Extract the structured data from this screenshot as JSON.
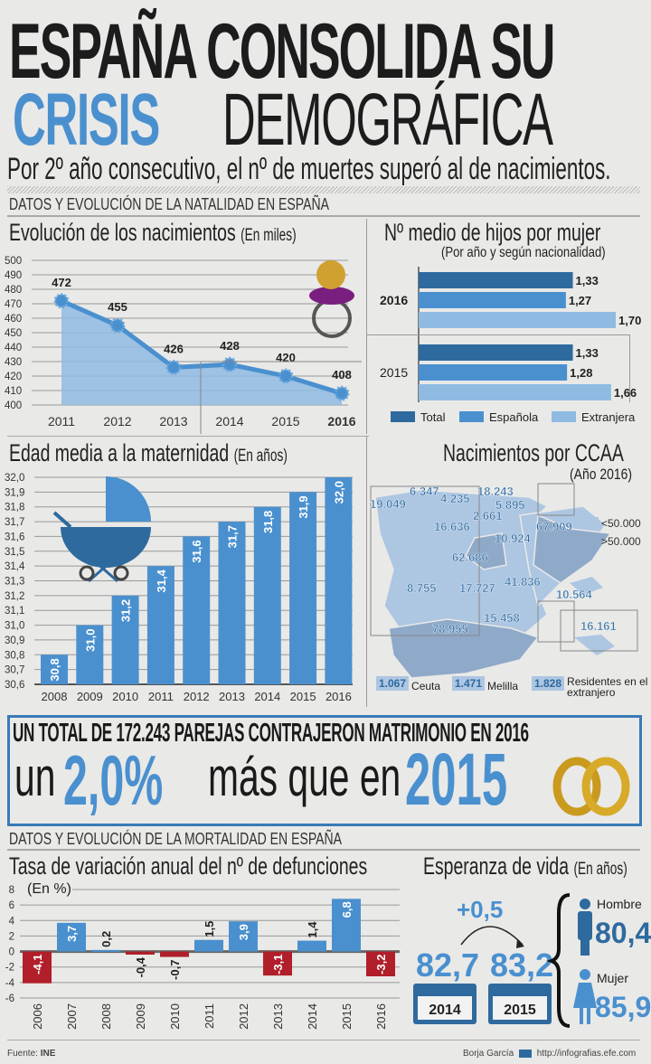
{
  "header": {
    "title_line1": "ESPAÑA CONSOLIDA SU",
    "title_line2_accent": "CRISIS",
    "title_line2_rest": "DEMOGRÁFICA",
    "subtitle": "Por 2º año consecutivo, el nº de muertes superó al de nacimientos."
  },
  "sections": {
    "natalidad": "DATOS Y EVOLUCIÓN DE LA NATALIDAD EN ESPAÑA",
    "mortalidad": "DATOS Y EVOLUCIÓN DE LA MORTALIDAD EN ESPAÑA"
  },
  "colors": {
    "accent_blue": "#4a90cf",
    "dark_blue": "#2e6a9e",
    "light_blue": "#8fbbe3",
    "negative_red": "#b01f2a",
    "map_low": "#adc6e2",
    "map_high": "#8fa9c9"
  },
  "chart_data": [
    {
      "id": "births",
      "type": "area",
      "title": "Evolución de los nacimientos",
      "unit_label": "(En miles)",
      "x": [
        "2011",
        "2012",
        "2013",
        "2014",
        "2015",
        "2016"
      ],
      "values": [
        472,
        455,
        426,
        428,
        420,
        408
      ],
      "labels": [
        "472",
        "455",
        "426",
        "428",
        "420",
        "408"
      ],
      "yticks": [
        "400",
        "410",
        "420",
        "430",
        "440",
        "450",
        "460",
        "470",
        "480",
        "490",
        "500"
      ],
      "ylim": [
        400,
        500
      ],
      "highlight": "2016",
      "grid": true
    },
    {
      "id": "children",
      "type": "bar",
      "orientation": "horizontal",
      "title": "Nº medio de hijos por mujer",
      "subtitle": "(Por año y según nacionalidad)",
      "categories": [
        "2016",
        "2015"
      ],
      "series": [
        {
          "name": "Total",
          "values": [
            1.33,
            1.33
          ],
          "labels": [
            "1,33",
            "1,33"
          ]
        },
        {
          "name": "Española",
          "values": [
            1.27,
            1.28
          ],
          "labels": [
            "1,27",
            "1,28"
          ]
        },
        {
          "name": "Extranjera",
          "values": [
            1.7,
            1.66
          ],
          "labels": [
            "1,70",
            "1,66"
          ]
        }
      ],
      "legend": "bottom"
    },
    {
      "id": "maternity_age",
      "type": "bar",
      "title": "Edad media a la maternidad",
      "unit_label": "(En años)",
      "categories": [
        "2008",
        "2009",
        "2010",
        "2011",
        "2012",
        "2013",
        "2014",
        "2015",
        "2016"
      ],
      "values": [
        30.8,
        31.0,
        31.2,
        31.4,
        31.6,
        31.7,
        31.8,
        31.9,
        32.0
      ],
      "labels": [
        "30,8",
        "31,0",
        "31,2",
        "31,4",
        "31,6",
        "31,7",
        "31,8",
        "31,9",
        "32,0"
      ],
      "yticks": [
        "30,6",
        "30,7",
        "30,8",
        "30,9",
        "31,0",
        "31,1",
        "31,2",
        "31,3",
        "31,4",
        "31,5",
        "31,6",
        "31,7",
        "31,8",
        "31,9",
        "32,0"
      ],
      "ylim": [
        30.6,
        32.0
      ],
      "grid": true
    },
    {
      "id": "deaths_rate",
      "type": "bar",
      "title": "Tasa de variación anual del nº de defunciones",
      "unit_label": "(En %)",
      "categories": [
        "2006",
        "2007",
        "2008",
        "2009",
        "2010",
        "2011",
        "2012",
        "2013",
        "2014",
        "2015",
        "2016"
      ],
      "values": [
        -4.1,
        3.7,
        0.2,
        -0.4,
        -0.7,
        1.5,
        3.9,
        -3.1,
        1.4,
        6.8,
        -3.2
      ],
      "labels": [
        "-4,1",
        "3,7",
        "0,2",
        "-0,4",
        "-0,7",
        "1,5",
        "3,9",
        "-3,1",
        "1,4",
        "6,8",
        "-3,2"
      ],
      "yticks": [
        "-6",
        "-4",
        "-2",
        "0",
        "2",
        "4",
        "6",
        "8"
      ],
      "ylim": [
        -6,
        8
      ],
      "grid": true
    }
  ],
  "map": {
    "title": "Nacimientos por CCAA",
    "subtitle": "(Año 2016)",
    "legend": [
      {
        "label": "<50.000"
      },
      {
        "label": ">50.000"
      }
    ],
    "regions": [
      {
        "name": "Galicia",
        "value": "19.049",
        "high": false
      },
      {
        "name": "Asturias",
        "value": "6.347",
        "high": false
      },
      {
        "name": "Cantabria",
        "value": "4.235",
        "high": false
      },
      {
        "name": "País Vasco",
        "value": "18.243",
        "high": false
      },
      {
        "name": "Navarra",
        "value": "5.895",
        "high": false
      },
      {
        "name": "La Rioja",
        "value": "2.661",
        "high": false
      },
      {
        "name": "Castilla y León",
        "value": "16.636",
        "high": false
      },
      {
        "name": "Aragón",
        "value": "10.924",
        "high": false
      },
      {
        "name": "Cataluña",
        "value": "67.909",
        "high": true
      },
      {
        "name": "Madrid",
        "value": "62.686",
        "high": true
      },
      {
        "name": "Extremadura",
        "value": "8.755",
        "high": false
      },
      {
        "name": "Castilla-La Mancha",
        "value": "17.727",
        "high": false
      },
      {
        "name": "C. Valenciana",
        "value": "41.836",
        "high": false
      },
      {
        "name": "Baleares",
        "value": "10.564",
        "high": false
      },
      {
        "name": "Murcia",
        "value": "15.458",
        "high": false
      },
      {
        "name": "Andalucía",
        "value": "78.955",
        "high": true
      },
      {
        "name": "Canarias",
        "value": "16.161",
        "high": false
      }
    ],
    "extras": [
      {
        "value": "1.067",
        "label": "Ceuta"
      },
      {
        "value": "1.471",
        "label": "Melilla"
      },
      {
        "value": "1.828",
        "label": "Residentes en el extranjero"
      }
    ]
  },
  "marriage": {
    "headline": "UN TOTAL DE 172.243 PAREJAS CONTRAJERON MATRIMONIO EN 2016",
    "prefix": "un",
    "percent": "2,0%",
    "middle": "más que en",
    "year": "2015"
  },
  "life_expectancy": {
    "title": "Esperanza de vida",
    "unit_label": "(En años)",
    "change": "+0,5",
    "years": [
      {
        "year": "2014",
        "value": "82,7"
      },
      {
        "year": "2015",
        "value": "83,2"
      }
    ],
    "men": {
      "label": "Hombre",
      "value": "80,4"
    },
    "women": {
      "label": "Mujer",
      "value": "85,9"
    }
  },
  "footer": {
    "source_label": "Fuente:",
    "source": "INE",
    "author": "Borja García",
    "url": "http://infografias.efe.com"
  }
}
